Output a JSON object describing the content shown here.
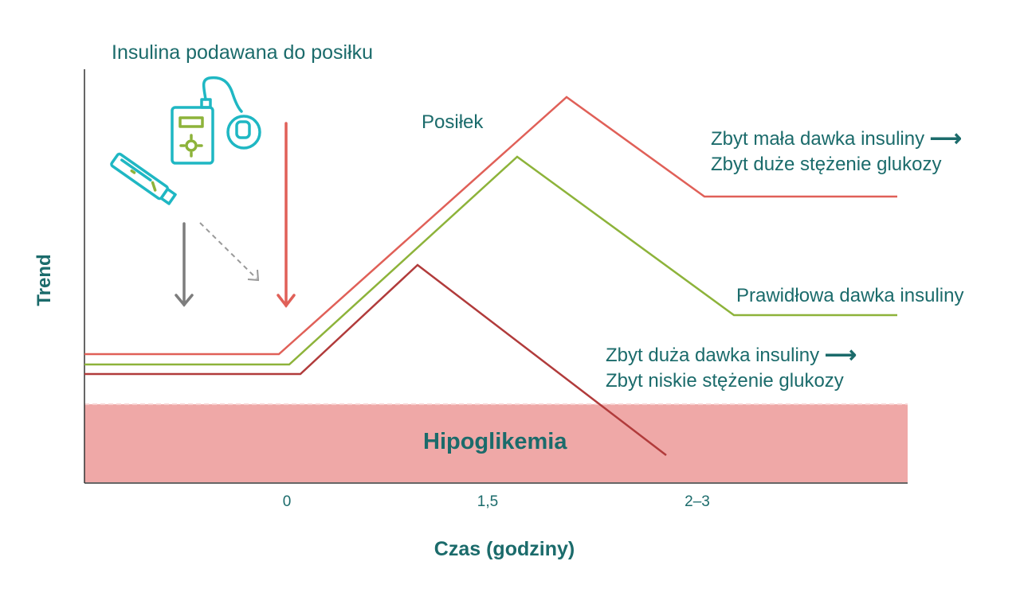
{
  "chart_data": {
    "type": "line",
    "title": "Insulina podawana do posiłku",
    "xlabel": "Czas (godziny)",
    "ylabel": "Trend",
    "x_ticks": [
      "0",
      "1,5",
      "2–3"
    ],
    "meal_label": "Posiłek",
    "zone_label": "Hipoglikemia",
    "series": [
      {
        "name": "Zbyt mała dawka insuliny",
        "color": "#e06058"
      },
      {
        "name": "Prawidłowa dawka insuliny",
        "color": "#8db33a"
      },
      {
        "name": "Zbyt duża dawka insuliny",
        "color": "#b13b3b"
      }
    ],
    "annotations": {
      "too_low_dose": [
        "Zbyt mała dawka insuliny",
        "Zbyt duże stężenie glukozy"
      ],
      "correct_dose": "Prawidłowa dawka insuliny",
      "too_high_dose": [
        "Zbyt duża dawka insuliny",
        "Zbyt niskie stężenie glukozy"
      ],
      "arrow_glyph": "⟶"
    },
    "colors": {
      "text": "#1b6b6b",
      "hypo_zone": "#efa8a7",
      "icon_teal": "#1fb7c3",
      "icon_green": "#8db33a"
    },
    "icons": [
      "insulin-pump-icon",
      "insulin-pen-icon"
    ]
  }
}
